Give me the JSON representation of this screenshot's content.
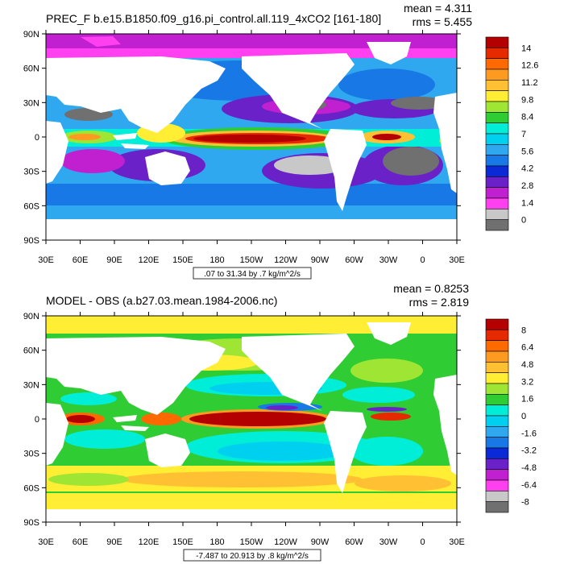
{
  "panels": [
    {
      "title": "PREC_F b.e15.B1850.f09_g16.pi_control.all.119_4xCO2 [161-180]",
      "mean_label": "mean = 4.311",
      "rms_label": "rms = 5.455",
      "range_label": ".07 to 31.34 by .7 kg/m^2/s",
      "colorbar_labels": [
        "14",
        "12.6",
        "11.2",
        "9.8",
        "8.4",
        "7",
        "5.6",
        "4.2",
        "2.8",
        "1.4",
        "0"
      ],
      "colorbar_colors": [
        "#b40000",
        "#e62a00",
        "#ff6a00",
        "#ff9a20",
        "#ffc033",
        "#ffee33",
        "#9ee633",
        "#30cc33",
        "#00eed8",
        "#00d0f0",
        "#30a8f0",
        "#1878e6",
        "#0a2ad8",
        "#6a22c8",
        "#c020d0",
        "#ff40f0",
        "#c8c8c8",
        "#707070"
      ]
    },
    {
      "title": "MODEL - OBS (a.b27.03.mean.1984-2006.nc)",
      "mean_label": "mean = 0.8253",
      "rms_label": "rms = 2.819",
      "range_label": "-7.487 to 20.913 by .8 kg/m^2/s",
      "colorbar_labels": [
        "8",
        "6.4",
        "4.8",
        "3.2",
        "1.6",
        "0",
        "-1.6",
        "-3.2",
        "-4.8",
        "-6.4",
        "-8"
      ],
      "colorbar_colors": [
        "#b40000",
        "#e62a00",
        "#ff6a00",
        "#ff9a20",
        "#ffc033",
        "#ffee33",
        "#9ee633",
        "#30cc33",
        "#00eed8",
        "#00d0f0",
        "#30a8f0",
        "#1878e6",
        "#0a2ad8",
        "#6a22c8",
        "#c020d0",
        "#ff40f0",
        "#c8c8c8",
        "#707070"
      ]
    }
  ],
  "axes": {
    "lat_labels": [
      "90N",
      "60N",
      "30N",
      "0",
      "30S",
      "60S",
      "90S"
    ],
    "lon_labels": [
      "30E",
      "60E",
      "90E",
      "120E",
      "150E",
      "180",
      "150W",
      "120W",
      "90W",
      "60W",
      "30W",
      "0",
      "30E"
    ]
  },
  "colors": {
    "land": "#ffffff",
    "grid_frame": "#000000"
  }
}
